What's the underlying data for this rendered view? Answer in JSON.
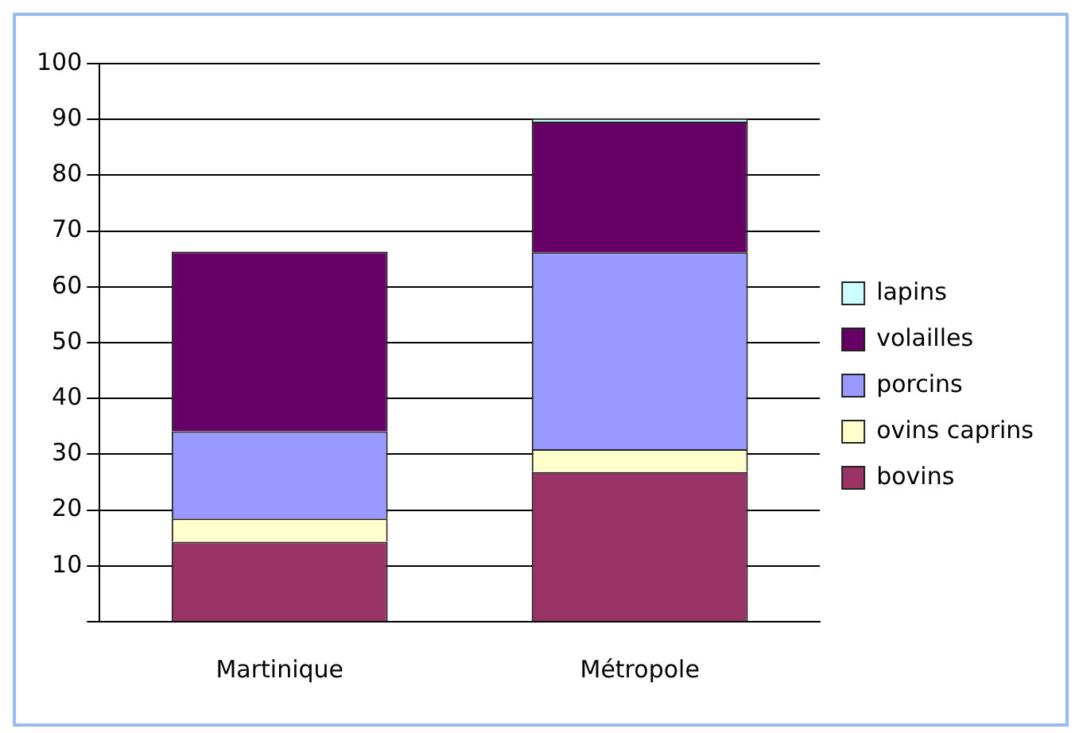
{
  "chart_data": {
    "type": "bar",
    "stacked": true,
    "categories": [
      "Martinique",
      "Métropole"
    ],
    "series": [
      {
        "name": "bovins",
        "color": "#993366",
        "values": [
          14.3,
          26.8
        ]
      },
      {
        "name": "ovins caprins",
        "color": "#ffffcc",
        "values": [
          4.2,
          4.1
        ]
      },
      {
        "name": "porcins",
        "color": "#9999ff",
        "values": [
          15.6,
          35.3
        ]
      },
      {
        "name": "volailles",
        "color": "#660066",
        "values": [
          32.2,
          23.4
        ]
      },
      {
        "name": "lapins",
        "color": "#ccffff",
        "values": [
          null,
          0.6
        ]
      }
    ],
    "ylim": [
      0,
      100
    ],
    "yticks": [
      {
        "value": 0,
        "label": null
      },
      10,
      20,
      30,
      40,
      50,
      60,
      70,
      80,
      90,
      100
    ],
    "grid": "y",
    "legend": "right"
  }
}
